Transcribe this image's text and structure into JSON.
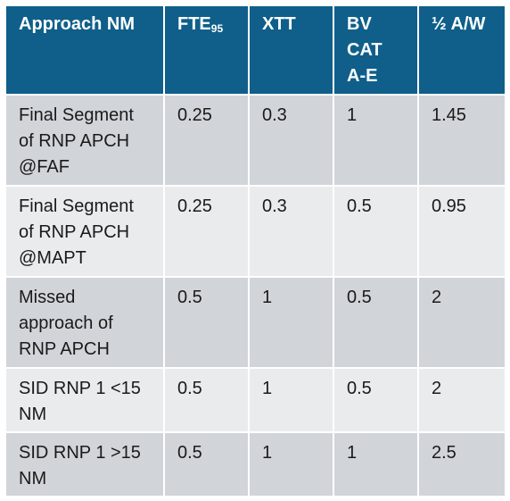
{
  "table": {
    "headers": [
      {
        "text": "Approach NM",
        "sub": ""
      },
      {
        "text": "FTE",
        "sub": "95"
      },
      {
        "text": "XTT",
        "sub": ""
      },
      {
        "text": "BV CAT A-E",
        "sub": ""
      },
      {
        "text": "½ A/W",
        "sub": ""
      }
    ],
    "rows": [
      [
        "Final Segment of RNP APCH @FAF",
        "0.25",
        "0.3",
        "1",
        "1.45"
      ],
      [
        "Final Segment of RNP APCH @MAPT",
        "0.25",
        "0.3",
        "0.5",
        "0.95"
      ],
      [
        "Missed approach of RNP APCH",
        "0.5",
        "1",
        "0.5",
        "2"
      ],
      [
        "SID RNP 1 <15 NM",
        "0.5",
        "1",
        "0.5",
        "2"
      ],
      [
        "SID RNP 1 >15 NM",
        "0.5",
        "1",
        "1",
        "2.5"
      ]
    ]
  }
}
